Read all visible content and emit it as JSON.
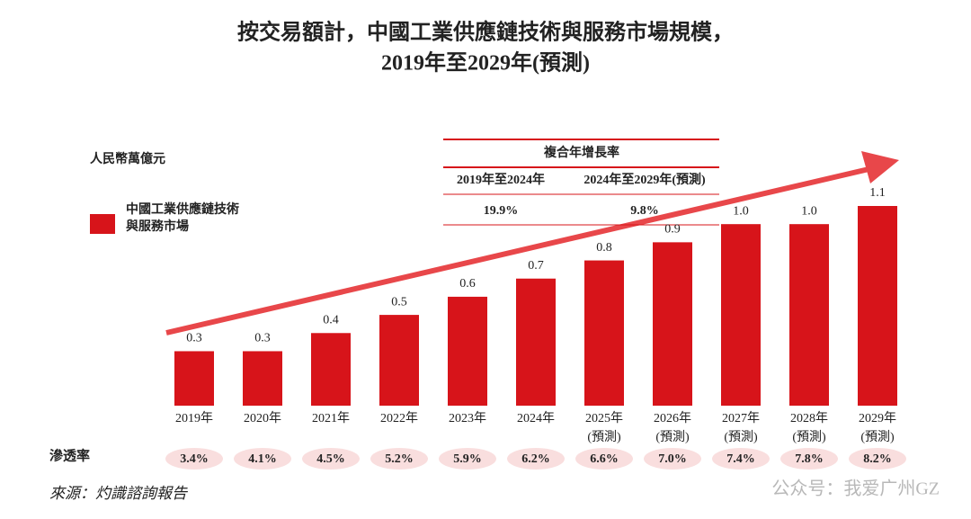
{
  "chart_data": {
    "type": "bar",
    "title": "按交易額計，中國工業供應鏈技術與服務市場規模，",
    "subtitle": "2019年至2029年(預測)",
    "unit": "人民幣萬億元",
    "categories": [
      "2019年",
      "2020年",
      "2021年",
      "2022年",
      "2023年",
      "2024年",
      "2025年",
      "2026年",
      "2027年",
      "2028年",
      "2029年"
    ],
    "category_notes": [
      null,
      null,
      null,
      null,
      null,
      null,
      "(預測)",
      "(預測)",
      "(預測)",
      "(預測)",
      "(預測)"
    ],
    "series": [
      {
        "name": "中國工業供應鏈技術與服務市場",
        "color": "#d7141a",
        "values": [
          0.3,
          0.3,
          0.4,
          0.5,
          0.6,
          0.7,
          0.8,
          0.9,
          1.0,
          1.0,
          1.1
        ],
        "value_labels": [
          "0.3",
          "0.3",
          "0.4",
          "0.5",
          "0.6",
          "0.7",
          "0.8",
          "0.9",
          "1.0",
          "1.0",
          "1.1"
        ]
      }
    ],
    "cagr": {
      "title": "複合年增長率",
      "periods": [
        "2019年至2024年",
        "2024年至2029年(預測)"
      ],
      "values": [
        19.9,
        9.8
      ],
      "value_labels": [
        "19.9%",
        "9.8%"
      ]
    },
    "penetration": {
      "label": "滲透率",
      "color": "#f9dede",
      "values": [
        3.4,
        4.1,
        4.5,
        5.2,
        5.9,
        6.2,
        6.6,
        7.0,
        7.4,
        7.8,
        8.2
      ],
      "value_labels": [
        "3.4%",
        "4.1%",
        "4.5%",
        "5.2%",
        "5.9%",
        "6.2%",
        "6.6%",
        "7.0%",
        "7.4%",
        "7.8%",
        "8.2%"
      ]
    },
    "source": "來源：灼識諮詢報告",
    "watermark": "公众号：我爱广州GZ"
  }
}
